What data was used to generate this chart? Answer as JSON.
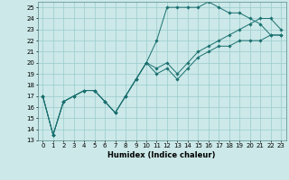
{
  "title": "",
  "xlabel": "Humidex (Indice chaleur)",
  "bg_color": "#cce8e8",
  "grid_color": "#99cccc",
  "line_color": "#1a7070",
  "xlim": [
    -0.5,
    23.5
  ],
  "ylim": [
    13,
    25.5
  ],
  "yticks": [
    13,
    14,
    15,
    16,
    17,
    18,
    19,
    20,
    21,
    22,
    23,
    24,
    25
  ],
  "xticks": [
    0,
    1,
    2,
    3,
    4,
    5,
    6,
    7,
    8,
    9,
    10,
    11,
    12,
    13,
    14,
    15,
    16,
    17,
    18,
    19,
    20,
    21,
    22,
    23
  ],
  "series": [
    {
      "x": [
        0,
        1,
        2,
        3,
        4,
        5,
        6,
        7,
        8,
        9,
        10,
        11,
        12,
        13,
        14,
        15,
        16,
        17,
        18,
        19,
        20,
        21,
        22,
        23
      ],
      "y": [
        17,
        13.5,
        16.5,
        17,
        17.5,
        17.5,
        16.5,
        15.5,
        17,
        18.5,
        20,
        22,
        25,
        25,
        25,
        25,
        25.5,
        25,
        24.5,
        24.5,
        24,
        23.5,
        22.5,
        22.5
      ]
    },
    {
      "x": [
        0,
        1,
        2,
        3,
        4,
        5,
        6,
        7,
        8,
        9,
        10,
        11,
        12,
        13,
        14,
        15,
        16,
        17,
        18,
        19,
        20,
        21,
        22,
        23
      ],
      "y": [
        17,
        13.5,
        16.5,
        17,
        17.5,
        17.5,
        16.5,
        15.5,
        17,
        18.5,
        20,
        19,
        19.5,
        18.5,
        19.5,
        20.5,
        21,
        21.5,
        21.5,
        22,
        22,
        22,
        22.5,
        22.5
      ]
    },
    {
      "x": [
        0,
        1,
        2,
        3,
        4,
        5,
        6,
        7,
        8,
        9,
        10,
        11,
        12,
        13,
        14,
        15,
        16,
        17,
        18,
        19,
        20,
        21,
        22,
        23
      ],
      "y": [
        17,
        13.5,
        16.5,
        17,
        17.5,
        17.5,
        16.5,
        15.5,
        17,
        18.5,
        20,
        19.5,
        20,
        19,
        20,
        21,
        21.5,
        22,
        22.5,
        23,
        23.5,
        24,
        24,
        23
      ]
    }
  ],
  "ylabel_fontsize": 5,
  "xlabel_fontsize": 6,
  "tick_fontsize": 5,
  "linewidth": 0.7,
  "markersize": 1.8
}
